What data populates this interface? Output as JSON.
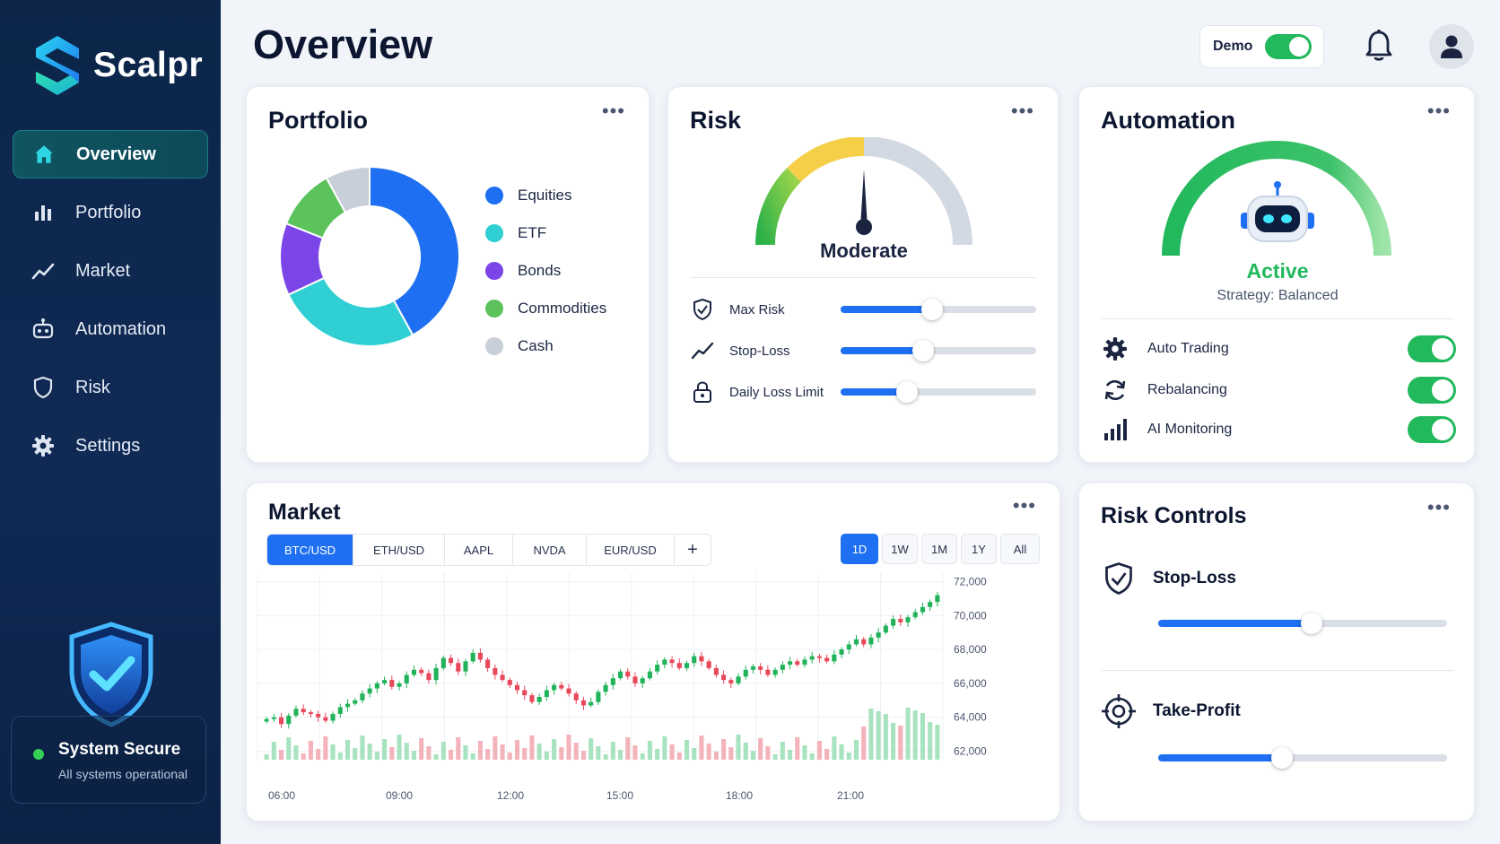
{
  "app": {
    "name": "Scalpr"
  },
  "sidebar": {
    "items": [
      {
        "label": "Overview",
        "icon": "home-icon",
        "active": true
      },
      {
        "label": "Portfolio",
        "icon": "bar-chart-icon"
      },
      {
        "label": "Market",
        "icon": "trend-line-icon"
      },
      {
        "label": "Automation",
        "icon": "robot-icon"
      },
      {
        "label": "Risk",
        "icon": "shield-icon"
      },
      {
        "label": "Settings",
        "icon": "gear-icon"
      }
    ],
    "status": {
      "title": "System Secure",
      "subtitle": "All systems operational",
      "icon": "shield-check-icon"
    }
  },
  "header": {
    "title": "Overview",
    "demo": {
      "label": "Demo",
      "on": true
    },
    "icons": [
      "bell-icon",
      "user-icon"
    ]
  },
  "portfolio": {
    "title": "Portfolio",
    "legend": [
      {
        "label": "Equities",
        "color": "#1e6ff1"
      },
      {
        "label": "ETF",
        "color": "#2fcfd4"
      },
      {
        "label": "Bonds",
        "color": "#7b45e8"
      },
      {
        "label": "Commodities",
        "color": "#5cc25c"
      },
      {
        "label": "Cash",
        "color": "#c9cfd9"
      }
    ],
    "chart_data": {
      "type": "pie",
      "categories": [
        "Equities",
        "ETF",
        "Bonds",
        "Commodities",
        "Cash"
      ],
      "values": [
        42,
        26,
        13,
        11,
        8
      ]
    }
  },
  "risk": {
    "title": "Risk",
    "level": "Moderate",
    "gauge_value": 0.5,
    "controls": [
      {
        "label": "Max Risk",
        "icon": "shield-check-icon",
        "value": 0.47
      },
      {
        "label": "Stop-Loss",
        "icon": "trend-line-icon",
        "value": 0.42
      },
      {
        "label": "Daily Loss Limit",
        "icon": "lock-icon",
        "value": 0.34
      }
    ]
  },
  "automation": {
    "title": "Automation",
    "status": "Active",
    "strategy": "Strategy: Balanced",
    "items": [
      {
        "label": "Auto Trading",
        "icon": "gear-icon",
        "on": true
      },
      {
        "label": "Rebalancing",
        "icon": "refresh-icon",
        "on": true
      },
      {
        "label": "AI Monitoring",
        "icon": "signal-bars-icon",
        "on": true
      }
    ]
  },
  "market": {
    "title": "Market",
    "symbols": [
      "BTC/USD",
      "ETH/USD",
      "AAPL",
      "NVDA",
      "EUR/USD"
    ],
    "active_symbol": "BTC/USD",
    "ranges": [
      "1D",
      "1W",
      "1M",
      "1Y",
      "All"
    ],
    "active_range": "1D",
    "chart_data": {
      "type": "candlestick",
      "x_labels": [
        "06:00",
        "09:00",
        "12:00",
        "15:00",
        "18:00",
        "21:00"
      ],
      "y_ticks": [
        "72,000",
        "70,000",
        "68,000",
        "66,000",
        "64,000",
        "62,000"
      ],
      "ylim": [
        61500,
        72500
      ],
      "close": [
        63900,
        64000,
        63600,
        64100,
        64500,
        64300,
        64200,
        64000,
        63800,
        64200,
        64600,
        64800,
        65000,
        65400,
        65700,
        66000,
        66200,
        65800,
        66000,
        66500,
        66800,
        66600,
        66200,
        66900,
        67500,
        67200,
        66700,
        67300,
        67800,
        67400,
        66900,
        66500,
        66200,
        65900,
        65600,
        65300,
        64900,
        65200,
        65600,
        65900,
        65700,
        65400,
        65000,
        64700,
        64900,
        65500,
        65900,
        66300,
        66700,
        66400,
        66000,
        66300,
        66700,
        67100,
        67400,
        67200,
        66900,
        67200,
        67600,
        67300,
        66900,
        66500,
        66200,
        66000,
        66400,
        66800,
        67000,
        66800,
        66500,
        66800,
        67100,
        67300,
        67100,
        67400,
        67600,
        67500,
        67300,
        67700,
        68000,
        68300,
        68600,
        68300,
        68700,
        69000,
        69400,
        69800,
        69600,
        69900,
        70200,
        70500,
        70800,
        71200
      ]
    }
  },
  "risk_controls": {
    "title": "Risk Controls",
    "items": [
      {
        "label": "Stop-Loss",
        "icon": "shield-check-icon",
        "value": 0.53
      },
      {
        "label": "Take-Profit",
        "icon": "target-icon",
        "value": 0.43
      }
    ]
  },
  "colors": {
    "accent": "#1e6ff1",
    "success": "#22b85c",
    "bear": "#e8485a",
    "sidebar": "#0c2549"
  }
}
